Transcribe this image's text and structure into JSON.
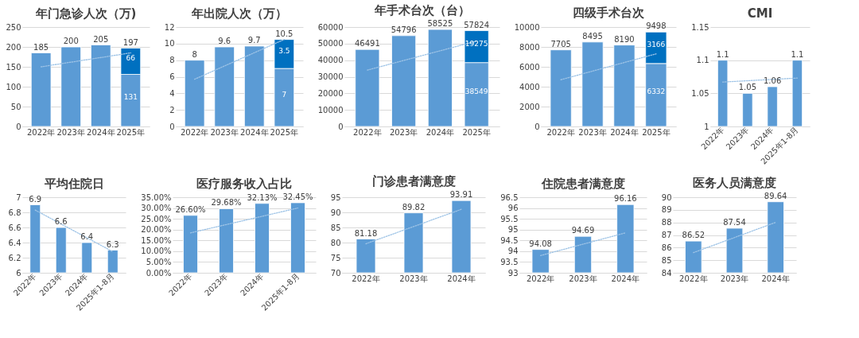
{
  "chart_data": [
    {
      "type": "bar",
      "title": "年门急诊人次（万)",
      "categories": [
        "2022年",
        "2023年",
        "2024年",
        "2025年"
      ],
      "stacked": true,
      "ylim": [
        0,
        250
      ],
      "yticks": [
        0,
        50,
        100,
        150,
        200,
        250
      ],
      "grid": "y",
      "totals": [
        null,
        null,
        null,
        "197"
      ],
      "series": [
        {
          "color": "#5b9bd5",
          "values": [
            185,
            200,
            205,
            131
          ],
          "value_labels": [
            "185",
            "200",
            "205",
            "131"
          ]
        },
        {
          "color": "#0070c0",
          "values": [
            null,
            null,
            null,
            66
          ],
          "value_labels": [
            null,
            null,
            null,
            "66"
          ]
        },
        {
          "type": "line",
          "x": [
            "2022年",
            "2025年"
          ],
          "values": [
            150,
            185
          ],
          "color": "#9dc3e6",
          "line_style": "dotted"
        }
      ]
    },
    {
      "type": "bar",
      "title": "年出院人次（万）",
      "categories": [
        "2022年",
        "2023年",
        "2024年",
        "2025年"
      ],
      "stacked": true,
      "ylim": [
        0,
        12
      ],
      "yticks": [
        0,
        2,
        4,
        6,
        8,
        10,
        12
      ],
      "grid": "y",
      "totals": [
        null,
        null,
        null,
        "10.5"
      ],
      "series": [
        {
          "color": "#5b9bd5",
          "values": [
            8,
            9.6,
            9.7,
            7
          ],
          "value_labels": [
            "8",
            "9.6",
            "9.7",
            "7"
          ]
        },
        {
          "color": "#0070c0",
          "values": [
            null,
            null,
            null,
            3.5
          ],
          "value_labels": [
            null,
            null,
            null,
            "3.5"
          ]
        },
        {
          "type": "line",
          "x": [
            "2022年",
            "2025年"
          ],
          "values": [
            5.7,
            10.5
          ],
          "color": "#9dc3e6",
          "line_style": "dotted"
        }
      ]
    },
    {
      "type": "bar",
      "title": "年手术台次（台）",
      "categories": [
        "2022年",
        "2023年",
        "2024年",
        "2025年"
      ],
      "stacked": true,
      "ylim": [
        0,
        60000
      ],
      "yticks": [
        0,
        10000,
        20000,
        30000,
        40000,
        50000,
        60000
      ],
      "grid": "y",
      "totals": [
        null,
        null,
        null,
        "57824"
      ],
      "series": [
        {
          "color": "#5b9bd5",
          "values": [
            46491,
            54796,
            58525,
            38549
          ],
          "value_labels": [
            "46491",
            "54796",
            "58525",
            "38549"
          ]
        },
        {
          "color": "#0070c0",
          "values": [
            null,
            null,
            null,
            19275
          ],
          "value_labels": [
            null,
            null,
            null,
            "19275"
          ]
        },
        {
          "type": "line",
          "x": [
            "2022年",
            "2025年"
          ],
          "values": [
            34000,
            51500
          ],
          "color": "#9dc3e6",
          "line_style": "dotted"
        }
      ]
    },
    {
      "type": "bar",
      "title": "四级手术台次",
      "categories": [
        "2022年",
        "2023年",
        "2024年",
        "2025年"
      ],
      "stacked": true,
      "ylim": [
        0,
        10000
      ],
      "yticks": [
        0,
        2000,
        4000,
        6000,
        8000,
        10000
      ],
      "grid": "y",
      "totals": [
        null,
        null,
        null,
        "9498"
      ],
      "series": [
        {
          "color": "#5b9bd5",
          "values": [
            7705,
            8495,
            8190,
            6332
          ],
          "value_labels": [
            "7705",
            "8495",
            "8190",
            "6332"
          ]
        },
        {
          "color": "#0070c0",
          "values": [
            null,
            null,
            null,
            3166
          ],
          "value_labels": [
            null,
            null,
            null,
            "3166"
          ]
        },
        {
          "type": "line",
          "x": [
            "2022年",
            "2025年"
          ],
          "values": [
            4700,
            7300
          ],
          "color": "#9dc3e6",
          "line_style": "dotted"
        }
      ]
    },
    {
      "type": "bar",
      "title": "CMI",
      "categories": [
        "2022年",
        "2023年",
        "2024年",
        "2025年1-8月"
      ],
      "ylim": [
        1,
        1.15
      ],
      "yticks": [
        1,
        1.05,
        1.1,
        1.15
      ],
      "grid": "y",
      "series": [
        {
          "color": "#5b9bd5",
          "values": [
            1.1,
            1.05,
            1.06,
            1.1
          ],
          "value_labels": [
            "1.1",
            "1.05",
            "1.06",
            "1.1"
          ]
        },
        {
          "type": "line",
          "x": [
            "2022年",
            "2025年1-8月"
          ],
          "values": [
            1.067,
            1.073
          ],
          "color": "#9dc3e6",
          "line_style": "dotted"
        }
      ]
    },
    {
      "type": "bar",
      "title": "平均住院日",
      "categories": [
        "2022年",
        "2023年",
        "2024年",
        "2025年1-8月"
      ],
      "ylim": [
        6,
        7
      ],
      "yticks": [
        6,
        6.2,
        6.4,
        6.6,
        6.8,
        7
      ],
      "grid": "y",
      "series": [
        {
          "color": "#5b9bd5",
          "values": [
            6.9,
            6.6,
            6.4,
            6.3
          ],
          "value_labels": [
            "6.9",
            "6.6",
            "6.4",
            "6.3"
          ]
        },
        {
          "type": "line",
          "x": [
            "2022年",
            "2025年1-8月"
          ],
          "values": [
            6.83,
            6.28
          ],
          "color": "#9dc3e6",
          "line_style": "dotted"
        }
      ]
    },
    {
      "type": "bar",
      "title": "医疗服务收入占比",
      "categories": [
        "2022年",
        "2023年",
        "2024年",
        "2025年1-8月"
      ],
      "ylim": [
        0,
        35
      ],
      "yticks": [
        {
          "value": 0,
          "label": "0.00%"
        },
        {
          "value": 5,
          "label": "5.00%"
        },
        {
          "value": 10,
          "label": "10.00%"
        },
        {
          "value": 15,
          "label": "15.00%"
        },
        {
          "value": 20,
          "label": "20.00%"
        },
        {
          "value": 25,
          "label": "25.00%"
        },
        {
          "value": 30,
          "label": "30.00%"
        },
        {
          "value": 35,
          "label": "35.00%"
        }
      ],
      "grid": "y",
      "series": [
        {
          "color": "#5b9bd5",
          "values": [
            26.6,
            29.68,
            32.13,
            32.45
          ],
          "value_labels": [
            "26.60%",
            "29.68%",
            "32.13%",
            "32.45%"
          ]
        },
        {
          "type": "line",
          "x": [
            "2022年",
            "2025年1-8月"
          ],
          "values": [
            18.5,
            30
          ],
          "color": "#9dc3e6",
          "line_style": "dotted"
        }
      ]
    },
    {
      "type": "bar",
      "title": "门诊患者满意度",
      "categories": [
        "2022年",
        "2023年",
        "2024年"
      ],
      "ylim": [
        70,
        95
      ],
      "yticks": [
        70,
        75,
        80,
        85,
        90,
        95
      ],
      "grid": "y",
      "series": [
        {
          "color": "#5b9bd5",
          "values": [
            81.18,
            89.82,
            93.91
          ],
          "value_labels": [
            "81.18",
            "89.82",
            "93.91"
          ]
        },
        {
          "type": "line",
          "x": [
            "2022年",
            "2024年"
          ],
          "values": [
            79.6,
            91
          ],
          "color": "#9dc3e6",
          "line_style": "dotted"
        }
      ]
    },
    {
      "type": "bar",
      "title": "住院患者满意度",
      "categories": [
        "2022年",
        "2023年",
        "2024年"
      ],
      "ylim": [
        93,
        96.5
      ],
      "yticks": [
        93,
        93.5,
        94,
        94.5,
        95,
        95.5,
        96,
        96.5
      ],
      "grid": "y",
      "series": [
        {
          "color": "#5b9bd5",
          "values": [
            94.08,
            94.69,
            96.16
          ],
          "value_labels": [
            "94.08",
            "94.69",
            "96.16"
          ]
        },
        {
          "type": "line",
          "x": [
            "2022年",
            "2024年"
          ],
          "values": [
            93.8,
            94.85
          ],
          "color": "#9dc3e6",
          "line_style": "dotted"
        }
      ]
    },
    {
      "type": "bar",
      "title": "医务人员满意度",
      "categories": [
        "2022年",
        "2023年",
        "2024年"
      ],
      "ylim": [
        84,
        90
      ],
      "yticks": [
        84,
        85,
        86,
        87,
        88,
        89,
        90
      ],
      "grid": "y",
      "series": [
        {
          "color": "#5b9bd5",
          "values": [
            86.52,
            87.54,
            89.64
          ],
          "value_labels": [
            "86.52",
            "87.54",
            "89.64"
          ]
        },
        {
          "type": "line",
          "x": [
            "2022年",
            "2024年"
          ],
          "values": [
            85.6,
            88
          ],
          "color": "#9dc3e6",
          "line_style": "dotted"
        }
      ]
    }
  ]
}
